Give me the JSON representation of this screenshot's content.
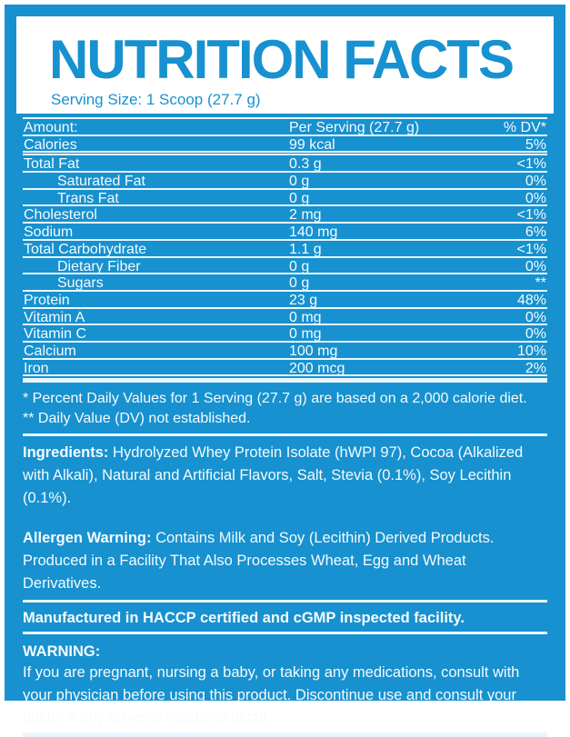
{
  "colors": {
    "label_blue": "#1791cf",
    "line_white": "#e9f7fd",
    "header_bg": "#ffffff"
  },
  "header": {
    "title": "NUTRITION FACTS",
    "serving_size": "Serving Size: 1 Scoop (27.7 g)"
  },
  "table": {
    "rows": [
      {
        "label": "Amount:",
        "amount": "Per Serving (27.7 g)",
        "dv": "% DV*"
      },
      {
        "label": "Calories",
        "amount": "99 kcal",
        "dv": "5%"
      },
      {
        "label": "Total Fat",
        "amount": "0.3 g",
        "dv": "<1%"
      },
      {
        "label": "Saturated Fat",
        "amount": "0 g",
        "dv": "0%"
      },
      {
        "label": "Trans Fat",
        "amount": "0 g",
        "dv": "0%"
      },
      {
        "label": "Cholesterol",
        "amount": "2 mg",
        "dv": "<1%"
      },
      {
        "label": "Sodium",
        "amount": "140 mg",
        "dv": "6%"
      },
      {
        "label": "Total Carbohydrate",
        "amount": "1.1 g",
        "dv": "<1%"
      },
      {
        "label": "Dietary Fiber",
        "amount": "0 g",
        "dv": "0%"
      },
      {
        "label": "Sugars",
        "amount": "0 g",
        "dv": "**"
      },
      {
        "label": "Protein",
        "amount": "23 g",
        "dv": "48%"
      },
      {
        "label": "Vitamin A",
        "amount": "0 mg",
        "dv": "0%"
      },
      {
        "label": "Vitamin C",
        "amount": "0 mg",
        "dv": "0%"
      },
      {
        "label": "Calcium",
        "amount": "100 mg",
        "dv": "10%"
      },
      {
        "label": "Iron",
        "amount": "200 mcg",
        "dv": "2%"
      }
    ]
  },
  "footnotes": {
    "daily_values": "* Percent Daily Values for 1 Serving (27.7 g) are based on a 2,000 calorie diet.",
    "not_established": "** Daily Value (DV) not established."
  },
  "ingredients": {
    "heading": "Ingredients:",
    "text": "Hydrolyzed Whey Protein Isolate (hWPI 97), Cocoa (Alkalized with Alkali), Natural and Artificial Flavors, Salt, Stevia (0.1%), Soy Lecithin (0.1%)."
  },
  "allergen": {
    "heading": "Allergen Warning:",
    "text": "Contains Milk and Soy (Lecithin) Derived Products. Produced in a Facility That Also Processes Wheat, Egg and Wheat Derivatives."
  },
  "manufactured": "Manufactured in HACCP certified and cGMP inspected facility.",
  "warning": {
    "heading": "WARNING:",
    "text": "If you are pregnant, nursing a baby, or taking any medications, consult with your physician before using this product. Discontinue use and consult your doctor if any adverse reactions occur."
  }
}
